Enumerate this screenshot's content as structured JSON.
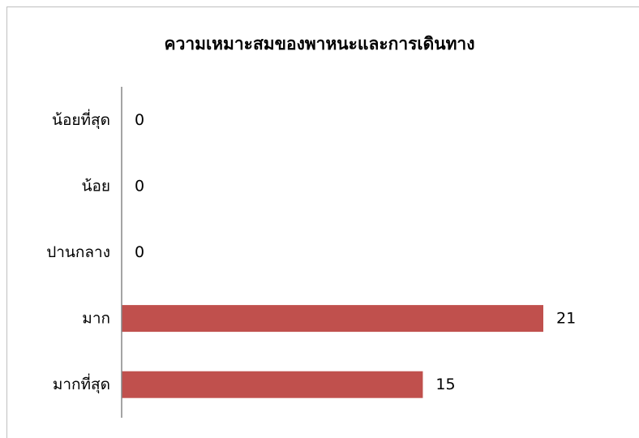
{
  "chart_data": {
    "type": "bar",
    "orientation": "horizontal",
    "title": "ความเหมาะสมของพาหนะและการเดินทาง",
    "categories": [
      "น้อยที่สุด",
      "น้อย",
      "ปานกลาง",
      "มาก",
      "มากที่สุด"
    ],
    "values": [
      0,
      0,
      0,
      21,
      15
    ],
    "xlim": [
      0,
      21
    ],
    "grid": false,
    "legend": "none",
    "bar_color": "#c0504d",
    "axis_color": "#868686"
  }
}
